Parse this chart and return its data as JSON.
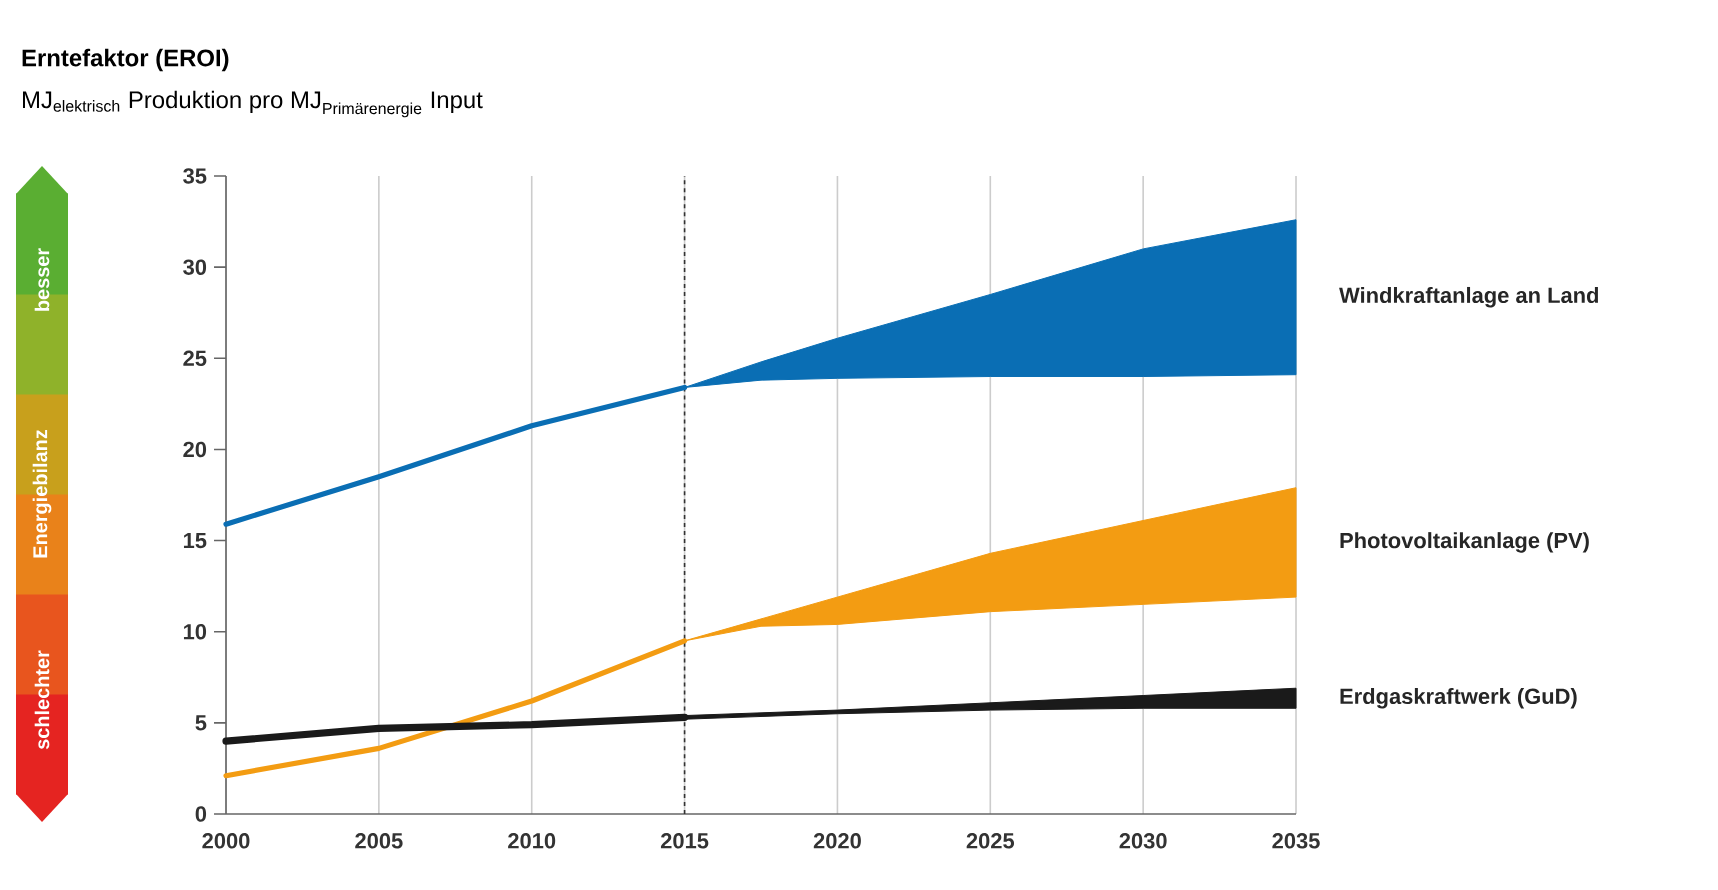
{
  "chart_data": {
    "type": "line",
    "title": "Erntefaktor (EROI)",
    "subtitle": "\\text{MJ}_{\\text{elektrisch}}\\text{ Produktion pro MJ}_{\\text{Primärenergie}}\\text{ Input}",
    "series": [
      {
        "name": "Windkraftanlage an Land",
        "color": "#0a6eb4",
        "x": [
          2000,
          2005,
          2010,
          2015,
          2017.5,
          2020,
          2025,
          2030,
          2035
        ],
        "values": [
          15.9,
          18.5,
          21.3,
          23.4,
          null,
          null,
          null,
          null,
          null
        ],
        "lower": [
          null,
          null,
          null,
          23.4,
          23.8,
          23.9,
          24.0,
          24.0,
          24.1
        ],
        "upper": [
          null,
          null,
          null,
          23.4,
          24.8,
          26.1,
          28.5,
          31.0,
          32.6
        ]
      },
      {
        "name": "Photovoltaikanlage (PV)",
        "color": "#f39c12",
        "x": [
          2000,
          2005,
          2010,
          2015,
          2017.5,
          2020,
          2025,
          2030,
          2035
        ],
        "values": [
          2.1,
          3.6,
          6.2,
          9.5,
          null,
          null,
          null,
          null,
          null
        ],
        "lower": [
          null,
          null,
          null,
          9.5,
          10.3,
          10.4,
          11.1,
          11.5,
          11.9
        ],
        "upper": [
          null,
          null,
          null,
          9.5,
          10.7,
          11.9,
          14.3,
          16.1,
          17.9
        ]
      },
      {
        "name": "Erdgaskraftwerk (GuD)",
        "color": "#1a1a1a",
        "x": [
          2000,
          2005,
          2010,
          2015,
          2020,
          2025,
          2030,
          2035
        ],
        "values": [
          4.0,
          4.7,
          4.9,
          5.3,
          null,
          null,
          null,
          null
        ],
        "lower": [
          null,
          null,
          null,
          5.2,
          5.5,
          5.7,
          5.8,
          5.8
        ],
        "upper": [
          null,
          null,
          null,
          5.4,
          5.7,
          6.1,
          6.5,
          6.9
        ]
      }
    ],
    "xlim": [
      2000,
      2035
    ],
    "xticks": [
      2000,
      2005,
      2010,
      2015,
      2020,
      2025,
      2030,
      2035
    ],
    "ylim": [
      0,
      35
    ],
    "yticks": [
      0,
      5,
      10,
      15,
      20,
      25,
      30,
      35
    ],
    "ref_lines": [
      {
        "axis": "x",
        "value": 2015,
        "color": "#333333",
        "line_style": "dotted"
      }
    ],
    "grid": "x",
    "annotations": [
      "schlechter",
      "Energiebilanz",
      "besser"
    ]
  }
}
